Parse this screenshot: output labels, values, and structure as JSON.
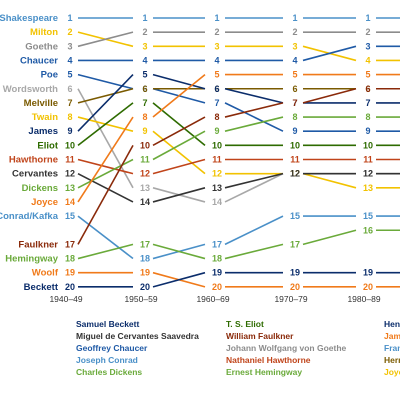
{
  "chart_data": {
    "type": "line",
    "subtype": "bump",
    "categories": [
      "1940–49",
      "1950–59",
      "1960–69",
      "1970–79",
      "1980–89"
    ],
    "y_axis": "rank",
    "ylim": [
      1,
      20
    ],
    "ranks": [
      "1",
      "2",
      "3",
      "4",
      "5",
      "6",
      "7",
      "8",
      "9",
      "10",
      "11",
      "12",
      "13",
      "14",
      "15",
      "16",
      "17",
      "18",
      "19",
      "20"
    ],
    "series": [
      {
        "name": "Shakespeare",
        "color": "#4a90c8",
        "values": [
          1,
          1,
          1,
          1,
          1
        ]
      },
      {
        "name": "Milton",
        "color": "#f2c200",
        "values": [
          2,
          3,
          3,
          3,
          4
        ]
      },
      {
        "name": "Goethe",
        "color": "#8c8c8c",
        "values": [
          3,
          2,
          2,
          2,
          2
        ]
      },
      {
        "name": "Chaucer",
        "color": "#1f5aa6",
        "values": [
          4,
          4,
          4,
          4,
          3
        ]
      },
      {
        "name": "Poe",
        "color": "#1f5aa6",
        "values": [
          5,
          6,
          7,
          9,
          9
        ]
      },
      {
        "name": "Wordsworth",
        "color": "#a8a8a8",
        "values": [
          6,
          13,
          14,
          12,
          12
        ]
      },
      {
        "name": "Melville",
        "color": "#7a5a00",
        "values": [
          7,
          6,
          6,
          6,
          6
        ]
      },
      {
        "name": "Twain",
        "color": "#f2c200",
        "values": [
          8,
          9,
          12,
          12,
          13
        ]
      },
      {
        "name": "James",
        "color": "#0b2d6b",
        "values": [
          9,
          5,
          6,
          7,
          7
        ]
      },
      {
        "name": "Eliot",
        "color": "#2e6b00",
        "values": [
          10,
          7,
          10,
          10,
          10
        ]
      },
      {
        "name": "Hawthorne",
        "color": "#c0441a",
        "values": [
          11,
          12,
          11,
          11,
          11
        ]
      },
      {
        "name": "Cervantes",
        "color": "#333333",
        "values": [
          12,
          14,
          13,
          12,
          12
        ]
      },
      {
        "name": "Dickens",
        "color": "#6aaa3a",
        "values": [
          13,
          11,
          9,
          8,
          8
        ]
      },
      {
        "name": "Joyce",
        "color": "#f07a1a",
        "values": [
          14,
          8,
          5,
          5,
          5
        ]
      },
      {
        "name": "Conrad/Kafka",
        "color": "#4a90c8",
        "values": [
          15,
          18,
          17,
          15,
          15
        ]
      },
      {
        "name": "Faulkner",
        "color": "#8a2a0a",
        "values": [
          17,
          10,
          8,
          7,
          6
        ]
      },
      {
        "name": "Hemingway",
        "color": "#6aaa3a",
        "values": [
          18,
          17,
          18,
          17,
          16
        ]
      },
      {
        "name": "Woolf",
        "color": "#f07a1a",
        "values": [
          19,
          19,
          20,
          20,
          20
        ]
      },
      {
        "name": "Beckett",
        "color": "#0b2d6b",
        "values": [
          20,
          20,
          19,
          19,
          19
        ]
      }
    ],
    "legend": [
      {
        "name": "Samuel Beckett",
        "color": "#0b2d6b"
      },
      {
        "name": "Miguel de Cervantes Saavedra",
        "color": "#333333"
      },
      {
        "name": "Geoffrey Chaucer",
        "color": "#1f5aa6"
      },
      {
        "name": "Joseph Conrad",
        "color": "#4a90c8"
      },
      {
        "name": "Charles Dickens",
        "color": "#6aaa3a"
      },
      {
        "name": "T. S. Eliot",
        "color": "#2e6b00"
      },
      {
        "name": "William Faulkner",
        "color": "#8a2a0a"
      },
      {
        "name": "Johann Wolfgang von Goethe",
        "color": "#8c8c8c"
      },
      {
        "name": "Nathaniel Hawthorne",
        "color": "#c0441a"
      },
      {
        "name": "Ernest Hemingway",
        "color": "#6aaa3a"
      },
      {
        "name": "Hen",
        "color": "#0b2d6b"
      },
      {
        "name": "Jam",
        "color": "#f07a1a"
      },
      {
        "name": "Fran",
        "color": "#4a90c8"
      },
      {
        "name": "Herr",
        "color": "#7a5a00"
      },
      {
        "name": "Joyc",
        "color": "#f2c200"
      }
    ]
  }
}
